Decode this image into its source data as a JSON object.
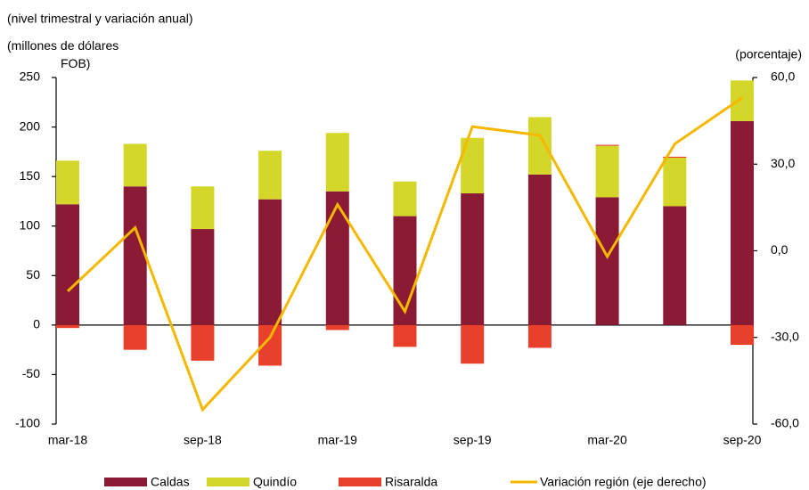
{
  "chart_data": {
    "type": "stacked-bar-line",
    "subtitle": "(nivel trimestral y variación anual)",
    "y_label": "(millones  de dólares FOB)",
    "y2_label": "(porcentaje)",
    "categories": [
      "mar-18",
      null,
      "sep-18",
      null,
      "mar-19",
      null,
      "sep-19",
      null,
      "mar-20",
      null,
      "sep-20"
    ],
    "series": [
      {
        "name": "Caldas",
        "color": "#8b1a35",
        "values": [
          122,
          140,
          97,
          127,
          135,
          110,
          133,
          152,
          129,
          120,
          206
        ]
      },
      {
        "name": "Quindío",
        "color": "#d4d62a",
        "values": [
          44,
          43,
          43,
          49,
          59,
          35,
          56,
          58,
          52,
          49,
          41
        ]
      },
      {
        "name": "Risaralda",
        "color": "#e8402a",
        "values": [
          -3,
          -25,
          -36,
          -41,
          -5,
          -22,
          -39,
          -23,
          1,
          1,
          -20
        ]
      },
      {
        "name": "Variación región (eje derecho)",
        "color": "#f5b800",
        "axis": "y2",
        "values": [
          -14,
          8,
          -55,
          -30,
          16,
          -21,
          43,
          40,
          -2,
          37,
          53
        ]
      }
    ],
    "ylim": [
      -100,
      250
    ],
    "yticks": [
      -100,
      -50,
      0,
      50,
      100,
      150,
      200,
      250
    ],
    "y2lim": [
      -60,
      60
    ],
    "y2ticks": [
      {
        "value": -60,
        "label": "-60,0"
      },
      {
        "value": -30,
        "label": "-30,0"
      },
      {
        "value": 0,
        "label": "0,0"
      },
      {
        "value": 30,
        "label": "30,0"
      },
      {
        "value": 60,
        "label": "60,0"
      }
    ],
    "legend": "bottom"
  }
}
